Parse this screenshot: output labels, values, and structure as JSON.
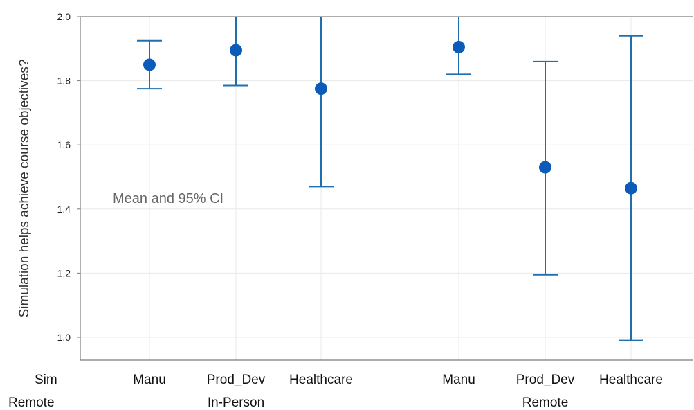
{
  "chart_data": {
    "type": "errorbar",
    "ylabel": "Simulation helps achieve course objectives?",
    "annotation": "Mean and 95% CI",
    "ylim": [
      0.93,
      2.0
    ],
    "yticks": [
      "1.0",
      "1.2",
      "1.4",
      "1.6",
      "1.8",
      "2.0"
    ],
    "row_headers": [
      "Sim",
      "Remote"
    ],
    "groups": [
      {
        "label": "In-Person",
        "categories": [
          "Manu",
          "Prod_Dev",
          "Healthcare"
        ]
      },
      {
        "label": "Remote",
        "categories": [
          "Manu",
          "Prod_Dev",
          "Healthcare"
        ]
      }
    ],
    "series": [
      {
        "group": "In-Person",
        "category": "Manu",
        "mean": 1.85,
        "lower": 1.775,
        "upper": 1.925
      },
      {
        "group": "In-Person",
        "category": "Prod_Dev",
        "mean": 1.895,
        "lower": 1.785,
        "upper": 2.0
      },
      {
        "group": "In-Person",
        "category": "Healthcare",
        "mean": 1.775,
        "lower": 1.47,
        "upper": 2.0
      },
      {
        "group": "Remote",
        "category": "Manu",
        "mean": 1.905,
        "lower": 1.82,
        "upper": 2.0
      },
      {
        "group": "Remote",
        "category": "Prod_Dev",
        "mean": 1.53,
        "lower": 1.195,
        "upper": 1.86
      },
      {
        "group": "Remote",
        "category": "Healthcare",
        "mean": 1.465,
        "lower": 0.99,
        "upper": 1.94
      }
    ],
    "grid": true,
    "colors": {
      "marker": "#0a5cb8",
      "bar": "#1f6fb0",
      "grid": "#e8e8e8",
      "frame": "#7a7a7a"
    }
  }
}
